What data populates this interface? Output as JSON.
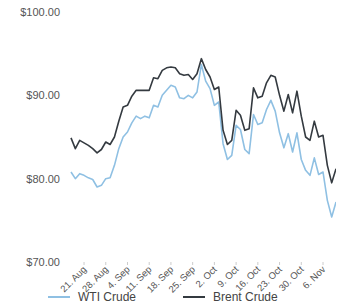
{
  "chart_data": {
    "type": "line",
    "categories": [
      null,
      null,
      null,
      "21. Aug",
      null,
      null,
      null,
      null,
      "28. Aug",
      null,
      null,
      null,
      null,
      "4. Sep",
      null,
      null,
      null,
      null,
      "11. Sep",
      null,
      null,
      null,
      null,
      "18. Sep",
      null,
      null,
      null,
      null,
      "25. Sep",
      null,
      null,
      null,
      null,
      "2. Oct",
      null,
      null,
      null,
      null,
      "9. Oct",
      null,
      null,
      null,
      null,
      "16. Oct",
      null,
      null,
      null,
      null,
      "23. Oct",
      null,
      null,
      null,
      null,
      "30. Oct",
      null,
      null,
      null,
      null,
      "6. Nov",
      null,
      null,
      null
    ],
    "series": [
      {
        "name": "WTI Crude",
        "color": "#8fc0e3",
        "values": [
          80.8,
          80.0,
          80.6,
          80.4,
          80.1,
          79.9,
          79.0,
          79.2,
          80.0,
          80.1,
          81.6,
          83.6,
          85.0,
          85.6,
          86.7,
          87.5,
          87.2,
          87.5,
          87.3,
          88.8,
          88.6,
          90.0,
          90.6,
          91.2,
          91.0,
          89.7,
          89.6,
          90.0,
          89.7,
          90.4,
          93.7,
          91.7,
          90.8,
          88.8,
          89.2,
          84.2,
          82.3,
          82.8,
          86.4,
          85.9,
          83.5,
          83.0,
          87.7,
          86.5,
          86.7,
          88.3,
          89.4,
          88.1,
          85.5,
          83.7,
          85.4,
          83.2,
          85.5,
          82.3,
          81.0,
          80.4,
          82.5,
          80.5,
          80.8,
          77.4,
          75.4,
          77.2
        ]
      },
      {
        "name": "Brent Crude",
        "color": "#343a40",
        "values": [
          84.9,
          83.6,
          84.6,
          84.3,
          84.0,
          83.6,
          83.1,
          83.5,
          84.4,
          84.1,
          85.0,
          86.9,
          88.6,
          88.8,
          89.9,
          90.6,
          90.6,
          90.6,
          90.6,
          92.1,
          92.0,
          93.0,
          93.3,
          93.4,
          93.3,
          92.6,
          92.4,
          92.5,
          91.9,
          92.6,
          94.4,
          93.1,
          92.2,
          90.7,
          91.0,
          85.8,
          84.1,
          84.6,
          88.2,
          87.6,
          85.8,
          86.0,
          90.9,
          89.7,
          89.9,
          91.5,
          92.4,
          92.2,
          90.0,
          88.1,
          90.1,
          87.9,
          90.5,
          87.5,
          85.0,
          84.6,
          86.9,
          85.0,
          85.2,
          81.6,
          79.5,
          81.2
        ]
      }
    ],
    "ylim": [
      70,
      100
    ],
    "yticks": [
      {
        "value": 70,
        "label": "$70.00"
      },
      {
        "value": 80,
        "label": "$80.00"
      },
      {
        "value": 90,
        "label": "$90.00"
      },
      {
        "value": 100,
        "label": "$100.00"
      }
    ],
    "grid": false,
    "legend": "bottom"
  }
}
